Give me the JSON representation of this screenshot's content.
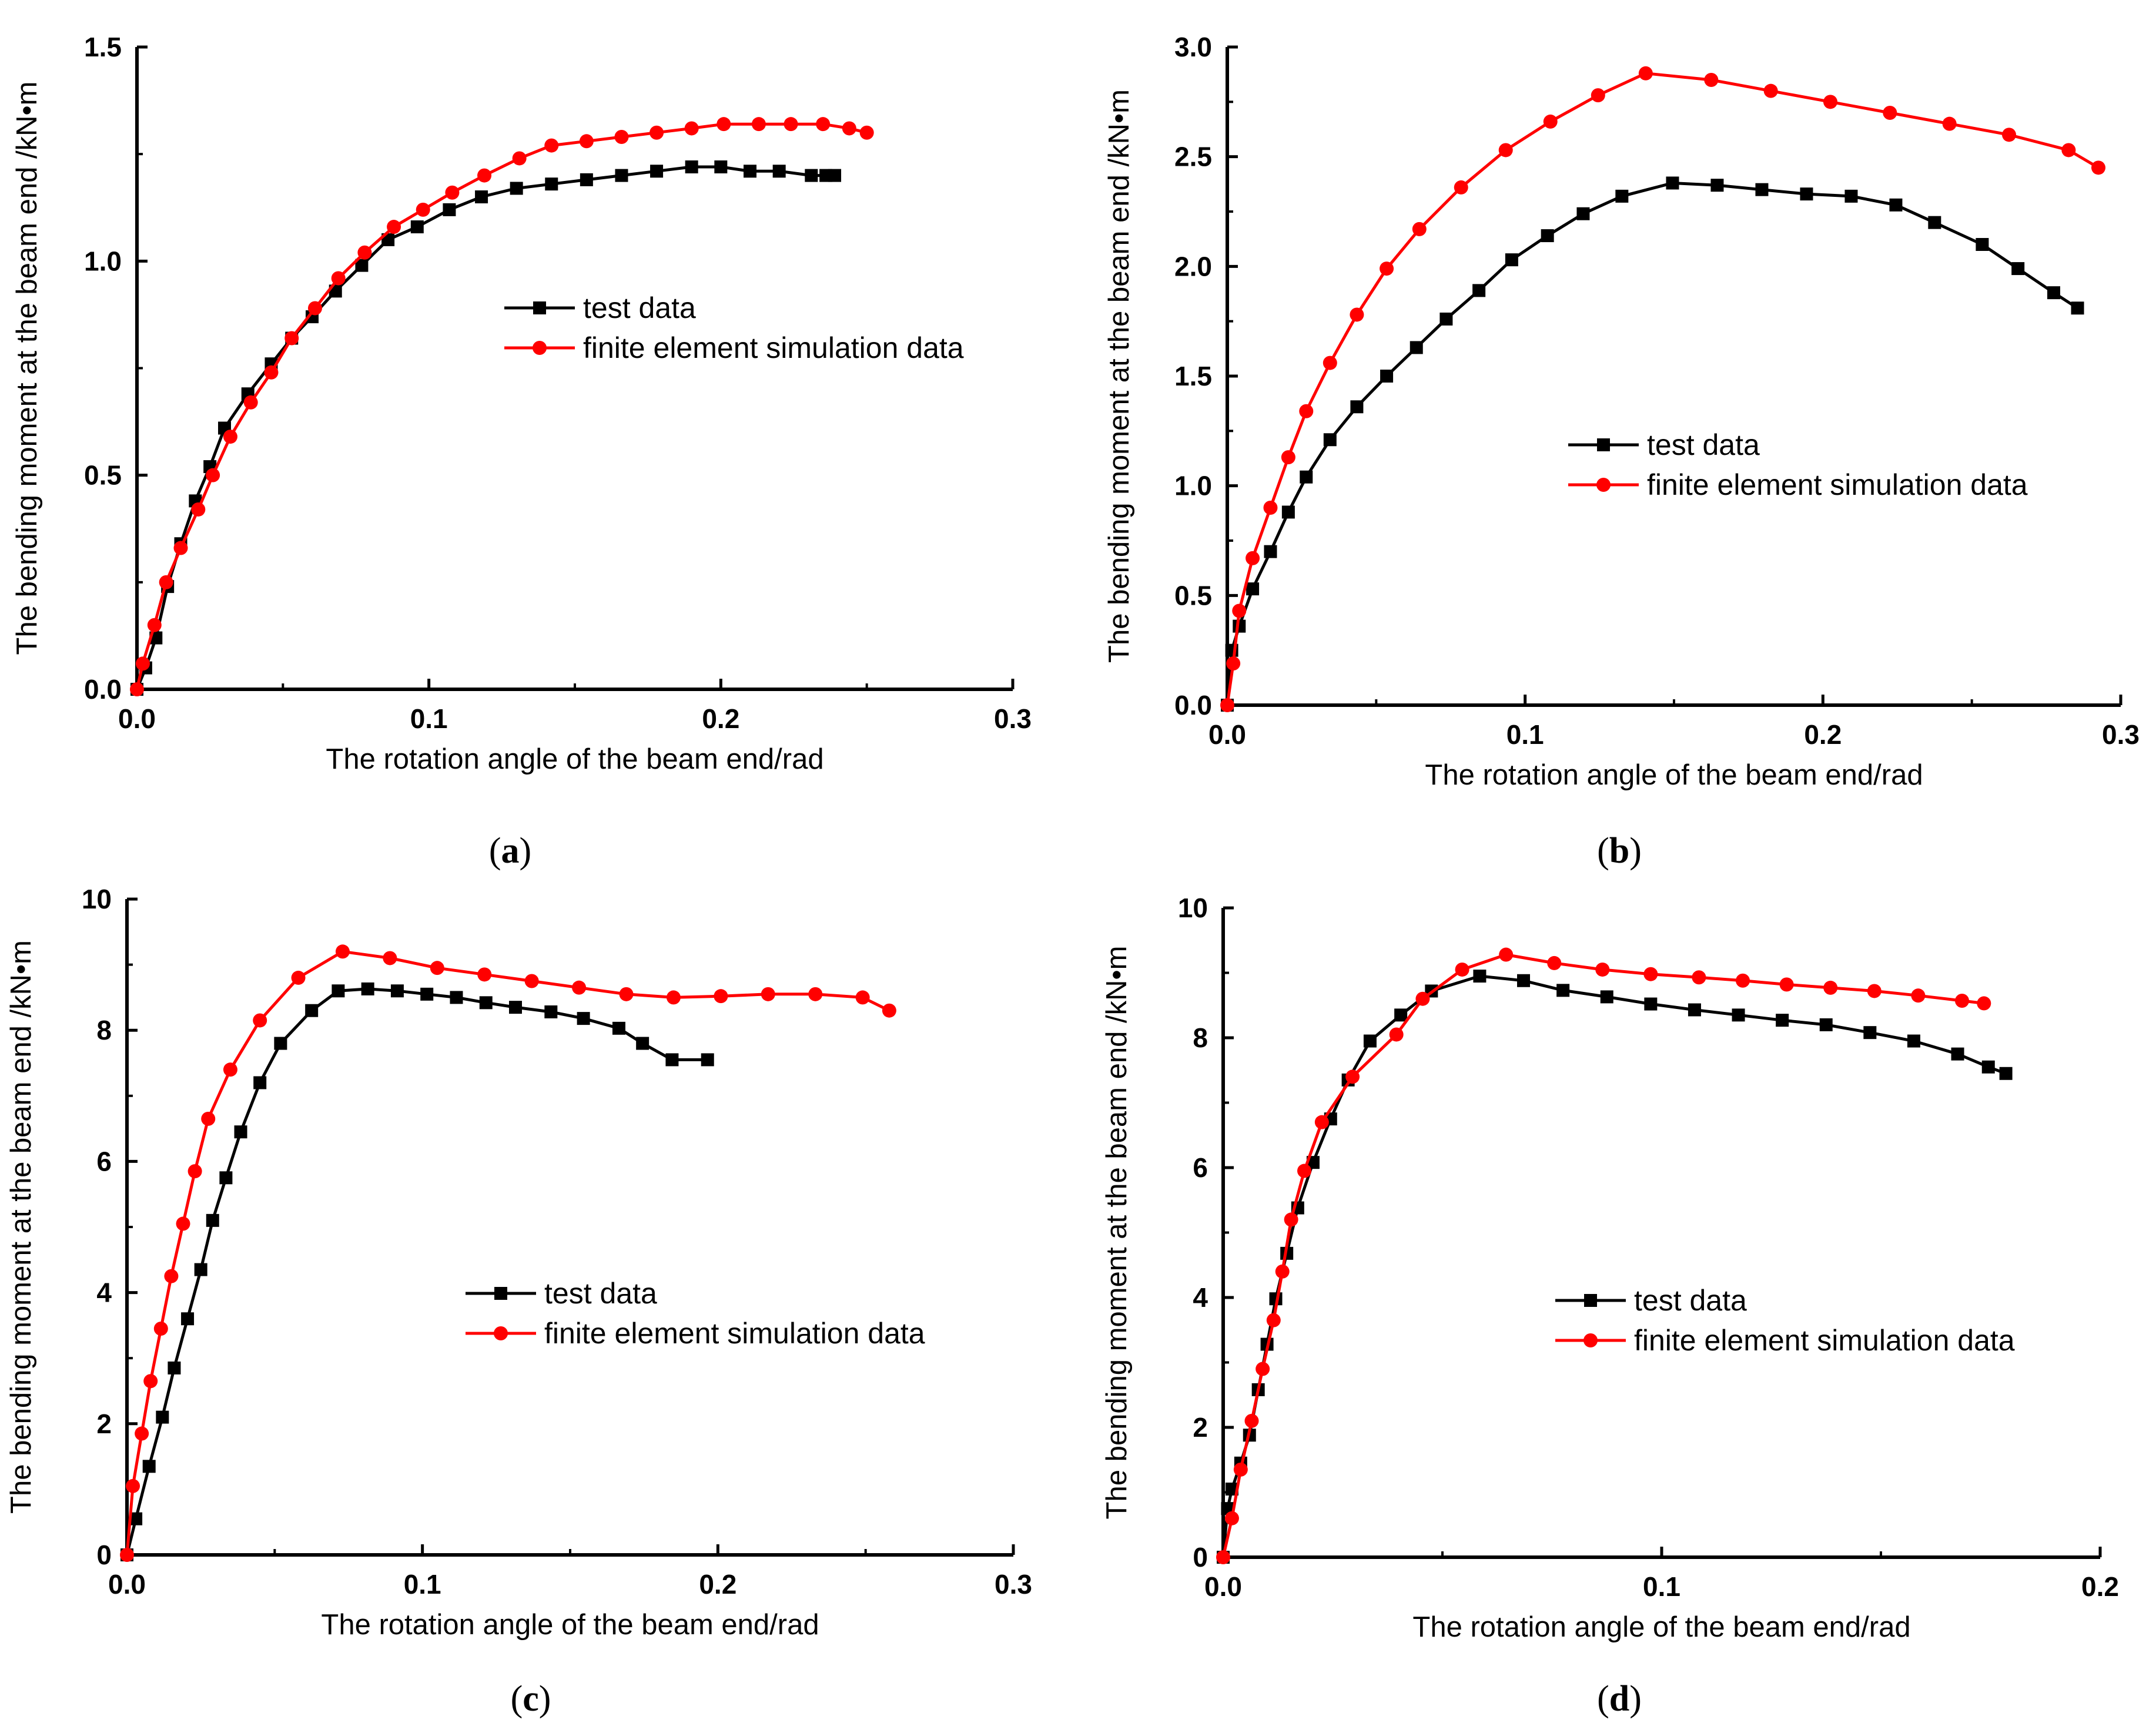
{
  "colors": {
    "test": "#000000",
    "fe": "#ff0000",
    "axis": "#000000"
  },
  "chart_data": [
    {
      "id": "a",
      "type": "line",
      "caption_letter": "a",
      "xlabel": "The rotation angle of the beam end/rad",
      "ylabel": "The bending moment at the beam end /kN•m",
      "xlim": [
        0,
        0.3
      ],
      "ylim": [
        0,
        1.5
      ],
      "xticks": [
        "0.0",
        "0.1",
        "0.2",
        "0.3"
      ],
      "yticks": [
        "0.0",
        "0.5",
        "1.0",
        "1.5"
      ],
      "legend": [
        "test data",
        "finite element simulation data"
      ],
      "series": [
        {
          "name": "test data",
          "marker": "square",
          "color": "#000000",
          "x": [
            0,
            0.003,
            0.0065,
            0.0105,
            0.015,
            0.02,
            0.025,
            0.03,
            0.038,
            0.046,
            0.053,
            0.06,
            0.068,
            0.077,
            0.086,
            0.096,
            0.107,
            0.118,
            0.13,
            0.142,
            0.154,
            0.166,
            0.178,
            0.19,
            0.2,
            0.21,
            0.22,
            0.231,
            0.236,
            0.239
          ],
          "y": [
            0,
            0.05,
            0.12,
            0.24,
            0.34,
            0.44,
            0.52,
            0.61,
            0.69,
            0.76,
            0.82,
            0.87,
            0.93,
            0.99,
            1.05,
            1.08,
            1.12,
            1.15,
            1.17,
            1.18,
            1.19,
            1.2,
            1.21,
            1.22,
            1.22,
            1.21,
            1.21,
            1.2,
            1.2,
            1.2
          ]
        },
        {
          "name": "finite element simulation data",
          "marker": "circle",
          "color": "#ff0000",
          "x": [
            0,
            0.002,
            0.006,
            0.01,
            0.015,
            0.021,
            0.026,
            0.032,
            0.039,
            0.046,
            0.053,
            0.061,
            0.069,
            0.078,
            0.088,
            0.098,
            0.108,
            0.119,
            0.131,
            0.142,
            0.154,
            0.166,
            0.178,
            0.19,
            0.201,
            0.213,
            0.224,
            0.235,
            0.244,
            0.25
          ],
          "y": [
            0,
            0.06,
            0.15,
            0.25,
            0.33,
            0.42,
            0.5,
            0.59,
            0.67,
            0.74,
            0.82,
            0.89,
            0.96,
            1.02,
            1.08,
            1.12,
            1.16,
            1.2,
            1.24,
            1.27,
            1.28,
            1.29,
            1.3,
            1.31,
            1.32,
            1.32,
            1.32,
            1.32,
            1.31,
            1.3
          ]
        }
      ]
    },
    {
      "id": "b",
      "type": "line",
      "caption_letter": "b",
      "xlabel": "The rotation angle of the beam end/rad",
      "ylabel": "The bending moment at the beam end /kN•m",
      "xlim": [
        0,
        0.3
      ],
      "ylim": [
        0,
        3.0
      ],
      "xticks": [
        "0.0",
        "0.1",
        "0.2",
        "0.3"
      ],
      "yticks": [
        "0.0",
        "0.5",
        "1.0",
        "1.5",
        "2.0",
        "2.5",
        "3.0"
      ],
      "legend": [
        "test data",
        "finite element simulation data"
      ],
      "series": [
        {
          "name": "test data",
          "marker": "square",
          "color": "#000000",
          "x": [
            0,
            0.0015,
            0.004,
            0.0085,
            0.0145,
            0.0205,
            0.0265,
            0.0345,
            0.0435,
            0.0535,
            0.0635,
            0.0735,
            0.0845,
            0.0955,
            0.1075,
            0.1195,
            0.1325,
            0.1495,
            0.1645,
            0.1795,
            0.1945,
            0.2095,
            0.2245,
            0.2375,
            0.2535,
            0.2655,
            0.2775,
            0.2855
          ],
          "y": [
            0,
            0.25,
            0.36,
            0.53,
            0.7,
            0.88,
            1.04,
            1.21,
            1.36,
            1.5,
            1.63,
            1.76,
            1.89,
            2.03,
            2.14,
            2.24,
            2.32,
            2.38,
            2.37,
            2.35,
            2.33,
            2.32,
            2.28,
            2.2,
            2.1,
            1.99,
            1.88,
            1.81
          ]
        },
        {
          "name": "finite element simulation data",
          "marker": "circle",
          "color": "#ff0000",
          "x": [
            0,
            0.002,
            0.004,
            0.0085,
            0.0145,
            0.0205,
            0.0265,
            0.0345,
            0.0435,
            0.0535,
            0.0645,
            0.0785,
            0.0935,
            0.1085,
            0.1245,
            0.1405,
            0.1625,
            0.1825,
            0.2025,
            0.2225,
            0.2425,
            0.2625,
            0.2825,
            0.2925
          ],
          "y": [
            0,
            0.19,
            0.43,
            0.67,
            0.9,
            1.13,
            1.34,
            1.56,
            1.78,
            1.99,
            2.17,
            2.36,
            2.53,
            2.66,
            2.78,
            2.88,
            2.85,
            2.8,
            2.75,
            2.7,
            2.65,
            2.6,
            2.53,
            2.45
          ]
        }
      ]
    },
    {
      "id": "c",
      "type": "line",
      "caption_letter": "c",
      "xlabel": "The rotation angle of the beam end/rad",
      "ylabel": "The bending moment at the beam end /kN•m",
      "xlim": [
        0,
        0.3
      ],
      "ylim": [
        0,
        10
      ],
      "xticks": [
        "0.0",
        "0.1",
        "0.2",
        "0.3"
      ],
      "yticks": [
        "0",
        "2",
        "4",
        "6",
        "8",
        "10"
      ],
      "legend": [
        "test data",
        "finite element simulation data"
      ],
      "series": [
        {
          "name": "test data",
          "marker": "square",
          "color": "#000000",
          "x": [
            0,
            0.003,
            0.0075,
            0.012,
            0.016,
            0.0205,
            0.025,
            0.029,
            0.0335,
            0.0385,
            0.045,
            0.052,
            0.0625,
            0.0715,
            0.0815,
            0.0915,
            0.1015,
            0.1115,
            0.1215,
            0.1315,
            0.1435,
            0.1545,
            0.1665,
            0.1745,
            0.1845,
            0.1965
          ],
          "y": [
            0,
            0.55,
            1.35,
            2.1,
            2.85,
            3.6,
            4.35,
            5.1,
            5.75,
            6.45,
            7.2,
            7.8,
            8.3,
            8.6,
            8.63,
            8.6,
            8.55,
            8.5,
            8.42,
            8.35,
            8.28,
            8.18,
            8.03,
            7.8,
            7.55,
            7.55
          ]
        },
        {
          "name": "finite element simulation data",
          "marker": "circle",
          "color": "#ff0000",
          "x": [
            0,
            0.002,
            0.005,
            0.008,
            0.0115,
            0.015,
            0.019,
            0.023,
            0.0275,
            0.035,
            0.045,
            0.058,
            0.073,
            0.089,
            0.105,
            0.121,
            0.137,
            0.153,
            0.169,
            0.185,
            0.201,
            0.217,
            0.233,
            0.249,
            0.258
          ],
          "y": [
            0,
            1.05,
            1.85,
            2.65,
            3.45,
            4.25,
            5.05,
            5.85,
            6.65,
            7.4,
            8.15,
            8.8,
            9.2,
            9.1,
            8.95,
            8.85,
            8.75,
            8.65,
            8.55,
            8.5,
            8.52,
            8.55,
            8.55,
            8.5,
            8.3
          ]
        }
      ]
    },
    {
      "id": "d",
      "type": "line",
      "caption_letter": "d",
      "xlabel": "The rotation angle of the beam end/rad",
      "ylabel": "The bending moment at the beam end /kN•m",
      "xlim": [
        0,
        0.2
      ],
      "ylim": [
        0,
        10
      ],
      "xticks": [
        "0.0",
        "0.1",
        "0.2"
      ],
      "yticks": [
        "0",
        "2",
        "4",
        "6",
        "8",
        "10"
      ],
      "legend": [
        "test data",
        "finite element simulation data"
      ],
      "series": [
        {
          "name": "test data",
          "marker": "square",
          "color": "#000000",
          "x": [
            0,
            0.001,
            0.002,
            0.004,
            0.006,
            0.008,
            0.01,
            0.012,
            0.0145,
            0.017,
            0.0205,
            0.0245,
            0.0285,
            0.0335,
            0.0405,
            0.0475,
            0.0585,
            0.0685,
            0.0775,
            0.0875,
            0.0975,
            0.1075,
            0.1175,
            0.1275,
            0.1375,
            0.1475,
            0.1575,
            0.1675,
            0.1745,
            0.1785
          ],
          "y": [
            0,
            0.75,
            1.05,
            1.45,
            1.88,
            2.58,
            3.28,
            3.98,
            4.68,
            5.38,
            6.08,
            6.75,
            7.35,
            7.95,
            8.35,
            8.72,
            8.95,
            8.88,
            8.73,
            8.63,
            8.52,
            8.43,
            8.35,
            8.27,
            8.2,
            8.08,
            7.95,
            7.75,
            7.55,
            7.45
          ]
        },
        {
          "name": "finite element simulation data",
          "marker": "circle",
          "color": "#ff0000",
          "x": [
            0,
            0.002,
            0.004,
            0.0065,
            0.009,
            0.0115,
            0.0135,
            0.0155,
            0.0185,
            0.0225,
            0.0295,
            0.0395,
            0.0455,
            0.0545,
            0.0645,
            0.0755,
            0.0865,
            0.0975,
            0.1085,
            0.1185,
            0.1285,
            0.1385,
            0.1485,
            0.1585,
            0.1685,
            0.1735
          ],
          "y": [
            0,
            0.6,
            1.35,
            2.1,
            2.9,
            3.65,
            4.4,
            5.2,
            5.95,
            6.7,
            7.4,
            8.05,
            8.6,
            9.05,
            9.28,
            9.15,
            9.05,
            8.98,
            8.93,
            8.88,
            8.82,
            8.77,
            8.72,
            8.65,
            8.57,
            8.53
          ]
        }
      ]
    }
  ]
}
